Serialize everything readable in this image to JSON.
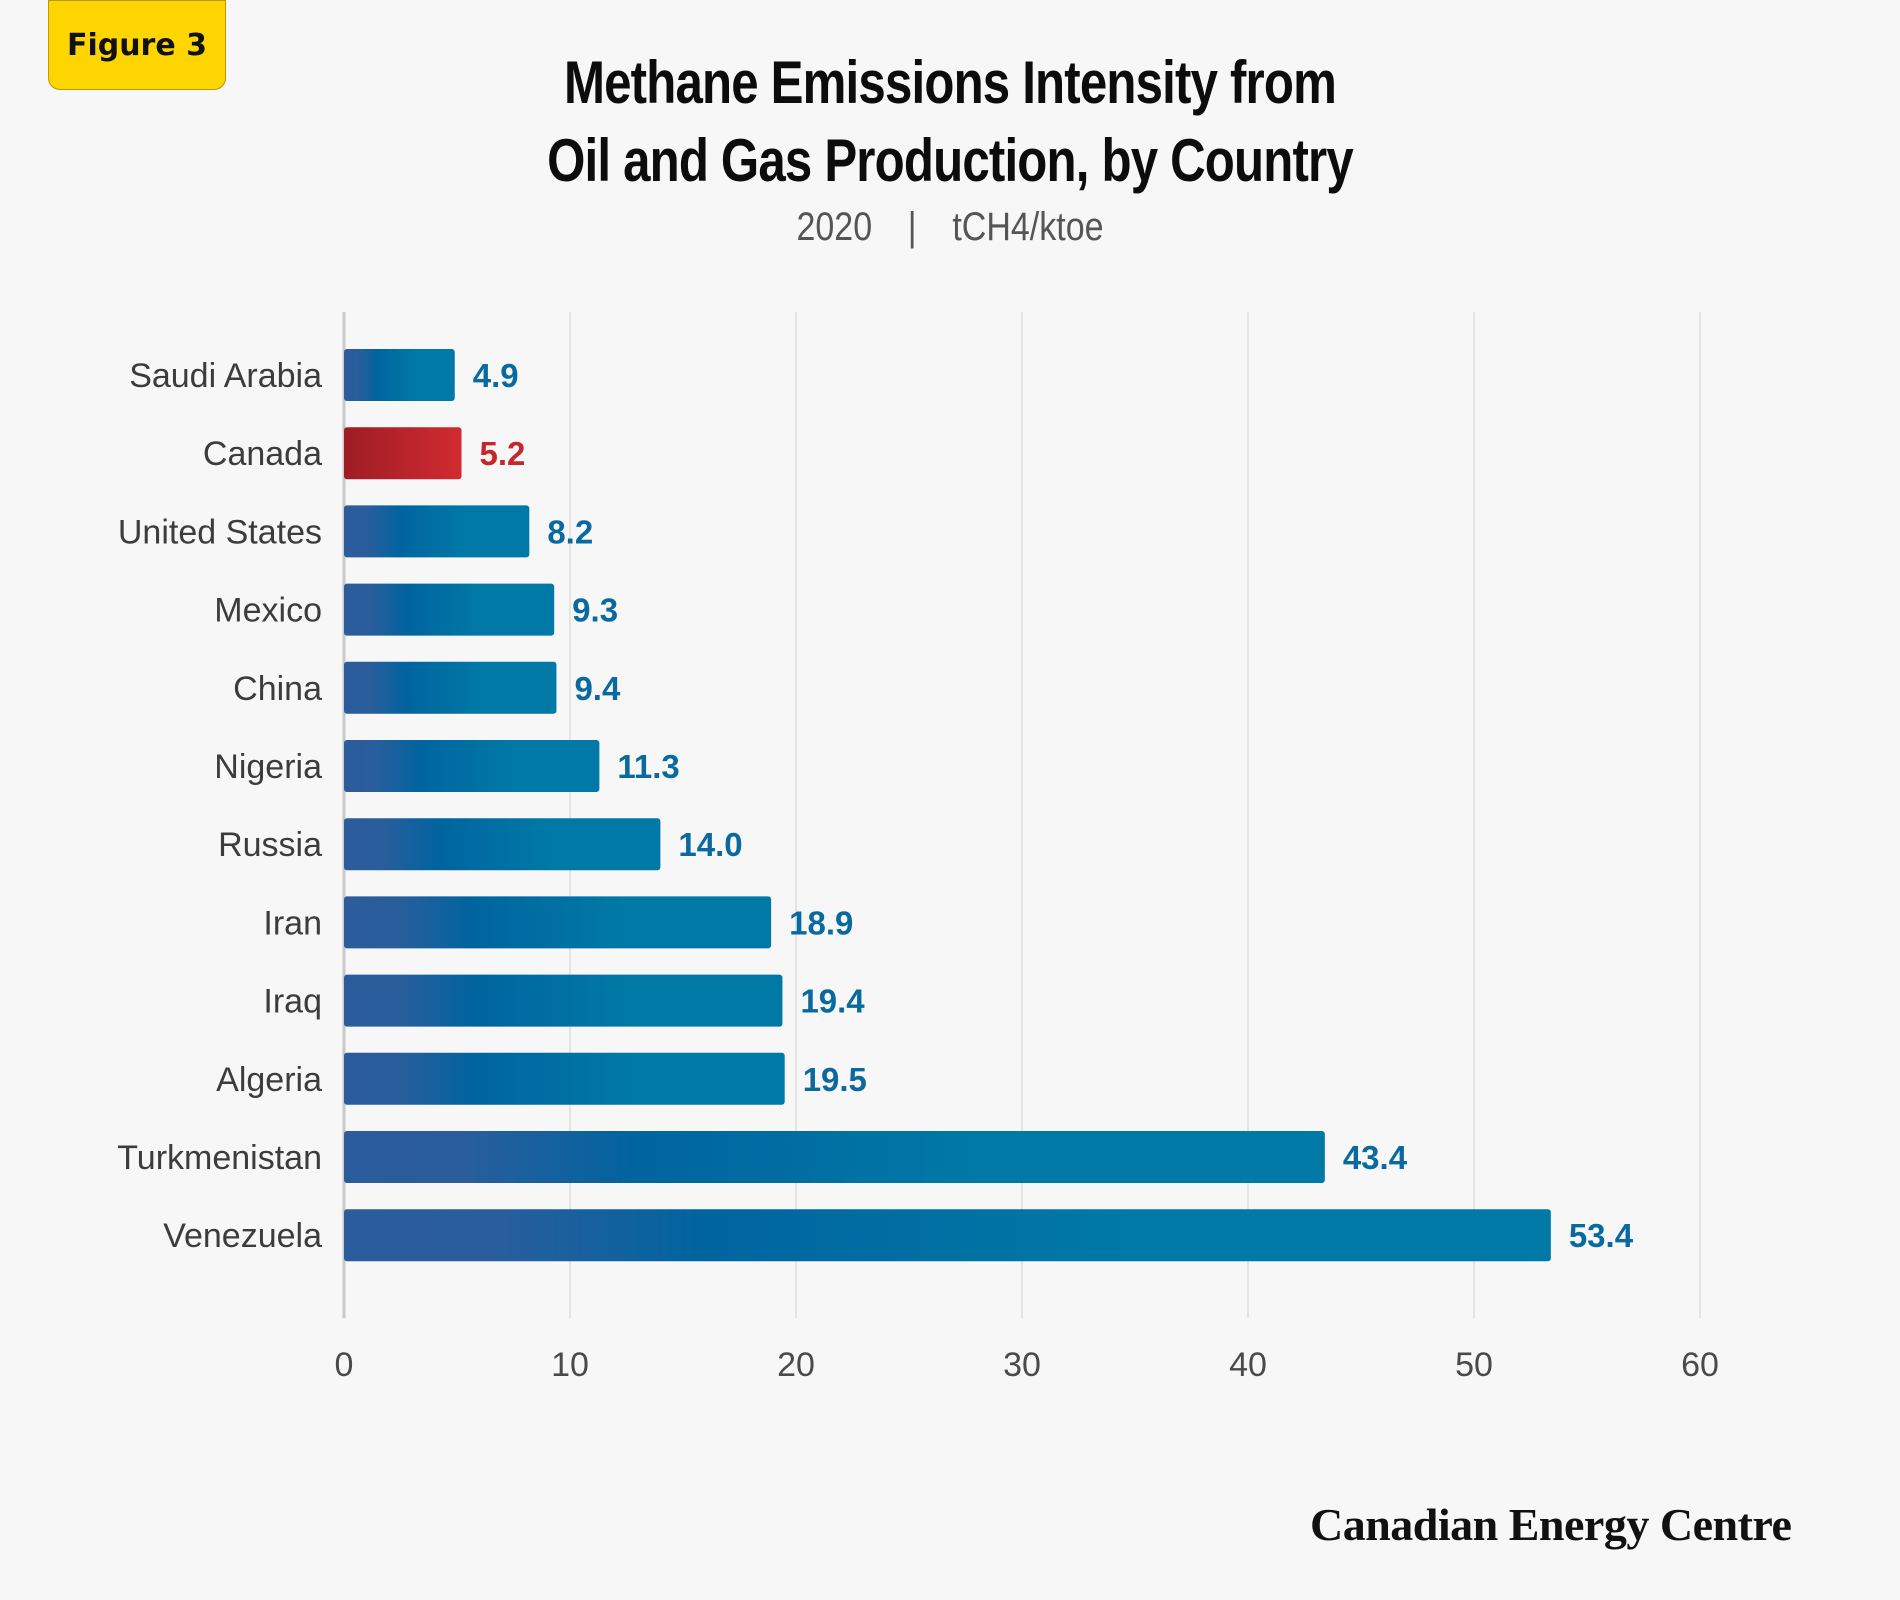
{
  "badge": {
    "label": "Figure 3"
  },
  "header": {
    "title_line1": "Methane Emissions Intensity from",
    "title_line2": "Oil and Gas Production, by Country",
    "subtitle_year": "2020",
    "subtitle_sep": "|",
    "subtitle_unit": "tCH4/ktoe"
  },
  "brand": "Canadian Energy Centre",
  "chart_data": {
    "type": "bar",
    "orientation": "horizontal",
    "title": "Methane Emissions Intensity from Oil and Gas Production, by Country",
    "subtitle": "2020 | tCH4/ktoe",
    "categories": [
      "Saudi Arabia",
      "Canada",
      "United States",
      "Mexico",
      "China",
      "Nigeria",
      "Russia",
      "Iran",
      "Iraq",
      "Algeria",
      "Turkmenistan",
      "Venezuela"
    ],
    "values": [
      4.9,
      5.2,
      8.2,
      9.3,
      9.4,
      11.3,
      14.0,
      18.9,
      19.4,
      19.5,
      43.4,
      53.4
    ],
    "value_labels": [
      "4.9",
      "5.2",
      "8.2",
      "9.3",
      "9.4",
      "11.3",
      "14.0",
      "18.9",
      "19.4",
      "19.5",
      "43.4",
      "53.4"
    ],
    "highlight": "Canada",
    "xlim": [
      0,
      60
    ],
    "xticks": [
      0,
      10,
      20,
      30,
      40,
      50,
      60
    ],
    "grid": "vertical",
    "colors": {
      "bar_start": "#2b5c9c",
      "bar_mid": "#00649f",
      "bar_end": "#0079a6",
      "highlight_start": "#9e1c24",
      "highlight_end": "#d12b30",
      "label": "#0a6aa0",
      "highlight_label": "#c8262d",
      "grid": "#dddddd"
    }
  }
}
